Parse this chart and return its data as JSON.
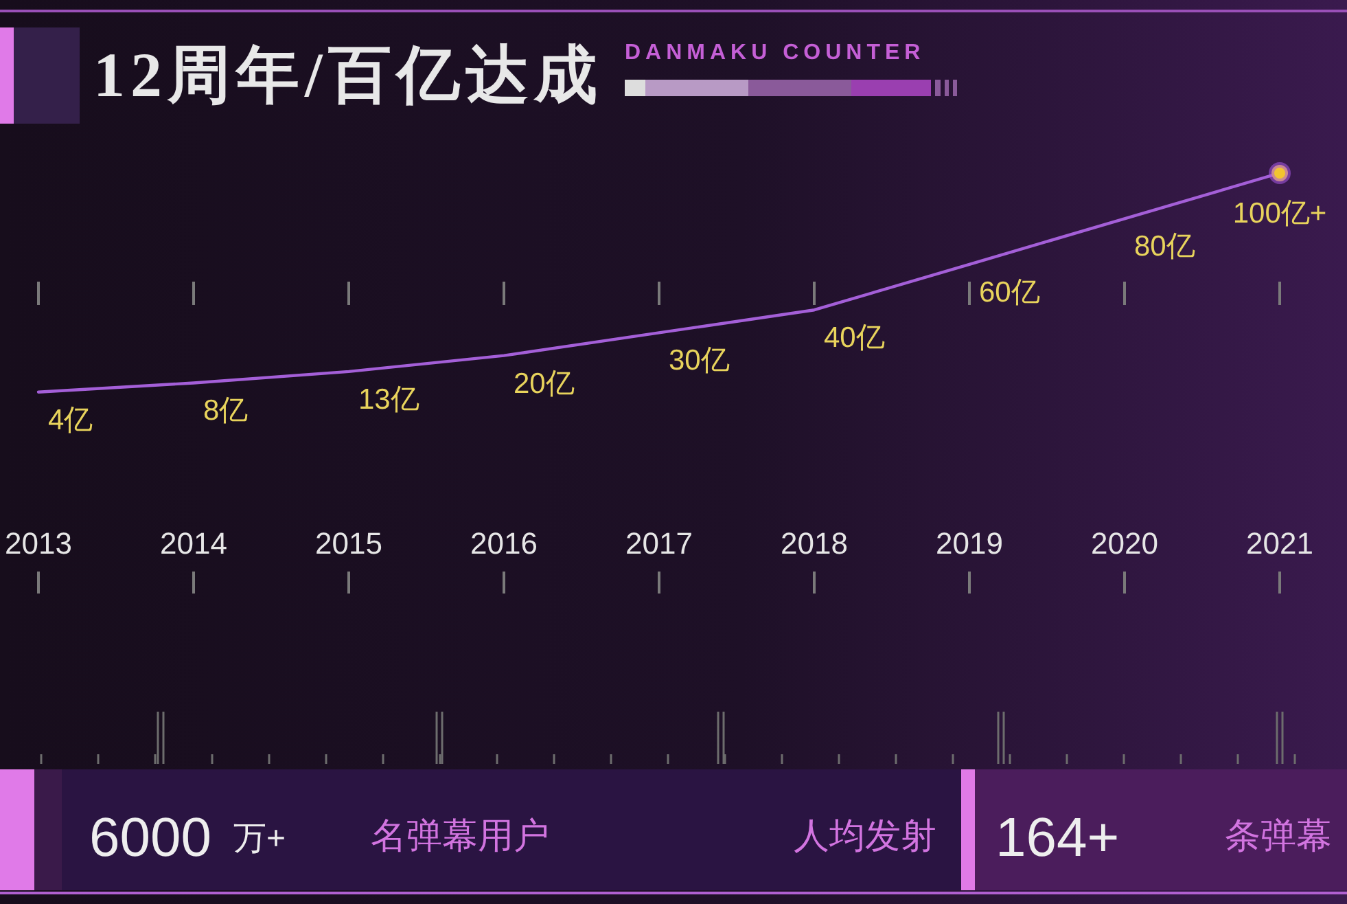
{
  "chart_data": {
    "type": "line",
    "title": "12周年/百亿达成",
    "subtitle": "DANMAKU COUNTER",
    "categories": [
      "2013",
      "2014",
      "2015",
      "2016",
      "2017",
      "2018",
      "2019",
      "2020",
      "2021"
    ],
    "series": [
      {
        "type": "line",
        "color": "#a45fd8",
        "values": [
          4,
          8,
          13,
          20,
          30,
          40,
          60,
          80,
          100
        ],
        "value_labels": [
          "4亿",
          "8亿",
          "13亿",
          "20亿",
          "30亿",
          "40亿",
          "60亿",
          "80亿",
          "100亿+"
        ]
      },
      {
        "type": "scatter",
        "color": "#f2c530",
        "values": [
          null,
          null,
          null,
          null,
          null,
          null,
          null,
          null,
          100
        ],
        "marker": "circle"
      }
    ],
    "annotations": [
      "6000",
      "万+",
      "名弹幕用户",
      "人均发射",
      "164+",
      "条弹幕"
    ]
  }
}
